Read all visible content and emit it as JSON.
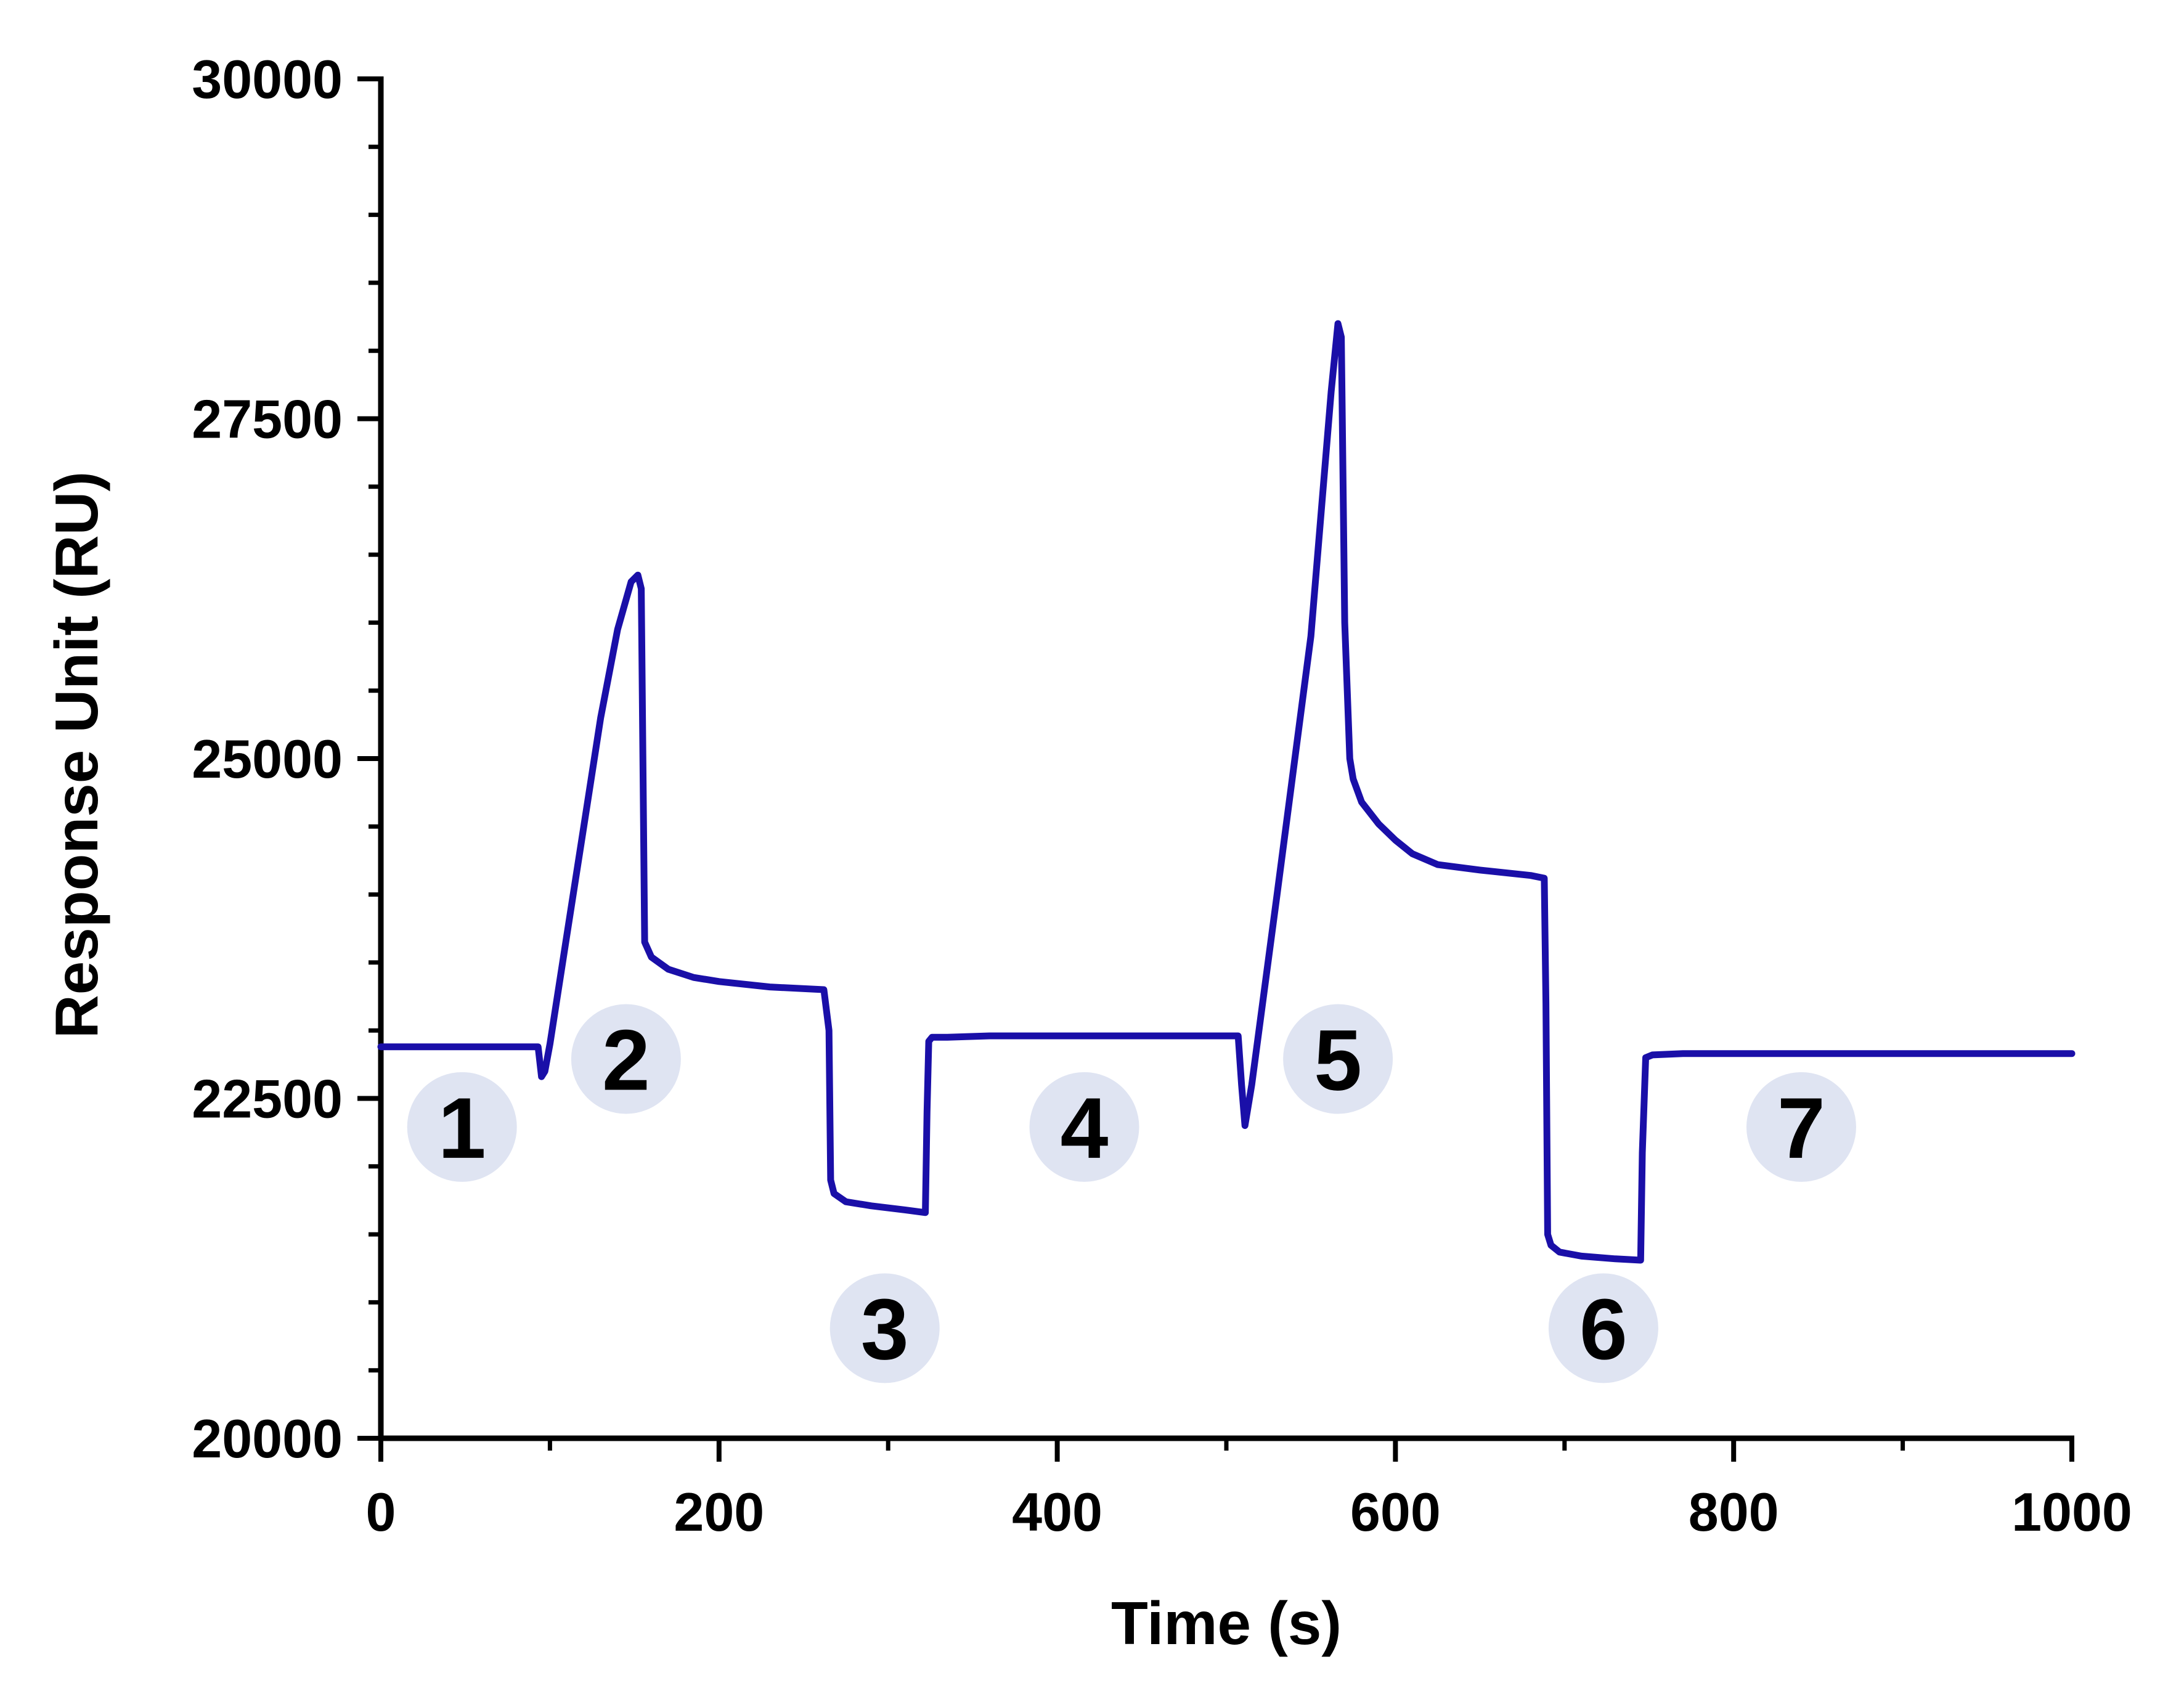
{
  "chart_data": {
    "type": "line",
    "xlabel": "Time (s)",
    "ylabel": "Response Unit (RU)",
    "xlim": [
      0,
      1000
    ],
    "ylim": [
      20000,
      30000
    ],
    "x_ticks": [
      0,
      200,
      400,
      600,
      800,
      1000
    ],
    "x_tick_labels": [
      "0",
      "200",
      "400",
      "600",
      "800",
      "1000"
    ],
    "y_ticks": [
      20000,
      22500,
      25000,
      27500,
      30000
    ],
    "y_tick_labels": [
      "20000",
      "22500",
      "25000",
      "27500",
      "30000"
    ],
    "grid": false,
    "legend": "none",
    "line_color": "#1a0fa8",
    "marker_fill": "#dfe4f2",
    "series": [
      {
        "x": [
          0,
          93,
          95,
          97,
          100,
          110,
          120,
          130,
          140,
          148,
          152,
          154,
          156,
          160,
          170,
          185,
          200,
          230,
          262,
          265,
          266,
          268,
          275,
          290,
          310,
          322,
          323,
          324,
          326,
          335,
          360,
          420,
          480,
          507,
          509,
          511,
          515,
          530,
          550,
          562,
          566,
          568,
          570,
          573,
          575,
          580,
          590,
          600,
          610,
          625,
          650,
          680,
          688,
          689,
          690,
          692,
          697,
          710,
          730,
          745,
          746,
          748,
          752,
          770,
          850,
          1000
        ],
        "y": [
          22880,
          22880,
          22660,
          22700,
          22900,
          23700,
          24500,
          25300,
          25950,
          26300,
          26350,
          26250,
          23650,
          23540,
          23450,
          23390,
          23360,
          23320,
          23300,
          23000,
          21900,
          21800,
          21740,
          21710,
          21680,
          21660,
          22400,
          22920,
          22950,
          22950,
          22960,
          22960,
          22960,
          22960,
          22600,
          22300,
          22600,
          24000,
          25900,
          27700,
          28200,
          28100,
          26000,
          25000,
          24850,
          24680,
          24520,
          24400,
          24300,
          24220,
          24180,
          24140,
          24120,
          23200,
          21500,
          21420,
          21370,
          21340,
          21320,
          21310,
          22100,
          22800,
          22820,
          22830,
          22830,
          22830
        ]
      }
    ],
    "annotations": [
      {
        "label": "1",
        "x": 48,
        "y": 22290
      },
      {
        "label": "2",
        "x": 145,
        "y": 22790
      },
      {
        "label": "3",
        "x": 298,
        "y": 20810
      },
      {
        "label": "4",
        "x": 416,
        "y": 22290
      },
      {
        "label": "5",
        "x": 566,
        "y": 22790
      },
      {
        "label": "6",
        "x": 723,
        "y": 20810
      },
      {
        "label": "7",
        "x": 840,
        "y": 22290
      }
    ]
  }
}
